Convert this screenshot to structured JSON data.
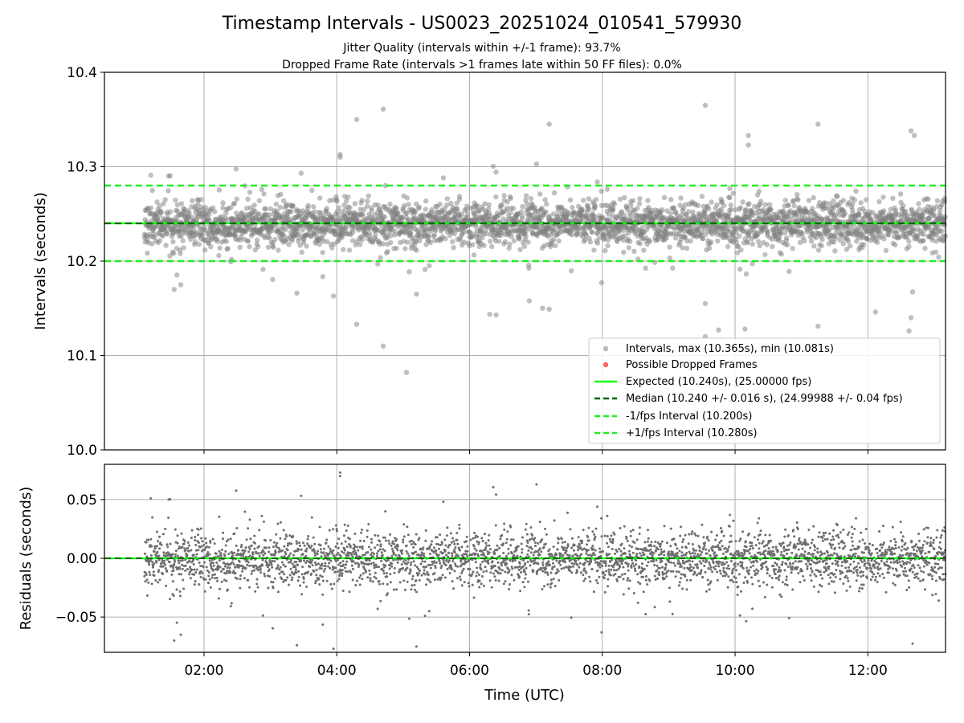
{
  "title": "Timestamp Intervals - US0023_20251024_010541_579930",
  "subtitle_1": "Jitter Quality (intervals within +/-1 frame): 93.7%",
  "subtitle_2": "Dropped Frame Rate (intervals >1 frames late within 50 FF files): 0.0%",
  "colors": {
    "points": "#808080",
    "dropped": "#ff0000",
    "expected": "#00ff00",
    "median": "#006400",
    "interval": "#22ee22",
    "grid": "#b0b0b0"
  },
  "chart_data": [
    {
      "type": "scatter",
      "name": "intervals-panel",
      "ylabel": "Intervals (seconds)",
      "ylim": [
        10.0,
        10.4
      ],
      "yticks": [
        "10.0",
        "10.1",
        "10.2",
        "10.3",
        "10.4"
      ],
      "xlim_hours": [
        0.5,
        13.17
      ],
      "grid": true,
      "legend_position": "lower-right",
      "expected": 10.24,
      "median": 10.24,
      "lower_interval": 10.2,
      "upper_interval": 10.28,
      "data_start_hours": 1.1,
      "max_interval": 10.365,
      "min_interval": 10.081,
      "legend": [
        "Intervals, max (10.365s), min (10.081s)",
        "Possible Dropped Frames",
        "Expected (10.240s), (25.00000 fps)",
        "Median (10.240 +/- 0.016 s), (24.99988 +/- 0.04 fps)",
        "-1/fps Interval (10.200s)",
        "+1/fps Interval (10.280s)"
      ],
      "outliers": [
        [
          4.3,
          10.35
        ],
        [
          4.7,
          10.361
        ],
        [
          5.05,
          10.082
        ],
        [
          4.7,
          10.11
        ],
        [
          4.3,
          10.133
        ],
        [
          7.2,
          10.345
        ],
        [
          9.55,
          10.365
        ],
        [
          11.25,
          10.345
        ],
        [
          12.65,
          10.338
        ],
        [
          12.7,
          10.333
        ],
        [
          10.2,
          10.333
        ],
        [
          10.2,
          10.323
        ],
        [
          4.05,
          10.31
        ],
        [
          4.05,
          10.313
        ],
        [
          6.4,
          10.143
        ],
        [
          9.55,
          10.155
        ],
        [
          9.55,
          10.12
        ],
        [
          9.75,
          10.127
        ],
        [
          10.15,
          10.128
        ],
        [
          11.25,
          10.131
        ],
        [
          12.62,
          10.126
        ],
        [
          12.65,
          10.14
        ],
        [
          5.2,
          10.165
        ],
        [
          6.9,
          10.158
        ],
        [
          7.1,
          10.15
        ],
        [
          7.2,
          10.149
        ],
        [
          1.55,
          10.17
        ],
        [
          1.65,
          10.175
        ],
        [
          3.4,
          10.166
        ],
        [
          3.95,
          10.163
        ]
      ]
    },
    {
      "type": "scatter",
      "name": "residuals-panel",
      "ylabel": "Residuals (seconds)",
      "xlabel": "Time (UTC)",
      "ylim": [
        -0.08,
        0.08
      ],
      "yticks": [
        "−0.05",
        "0.00",
        "0.05"
      ],
      "xticks": [
        "02:00",
        "04:00",
        "06:00",
        "08:00",
        "10:00",
        "12:00"
      ],
      "xtick_hours": [
        2,
        4,
        6,
        8,
        10,
        12
      ],
      "xlim_hours": [
        0.5,
        13.17
      ],
      "grid": true,
      "zero_line": 0.0
    }
  ]
}
